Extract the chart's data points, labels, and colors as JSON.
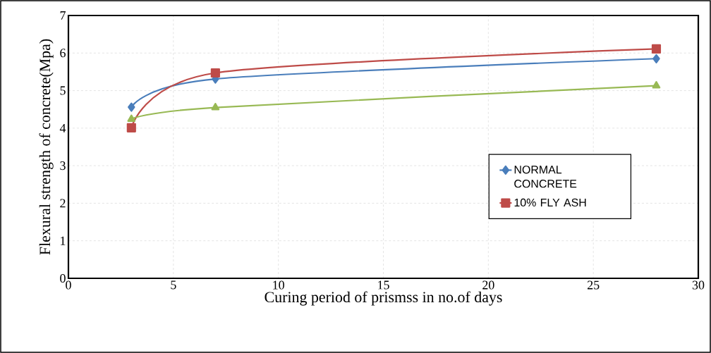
{
  "chart_data": {
    "type": "line",
    "xlabel": "Curing period of prismss in no.of days",
    "ylabel": "Flexural strength of concrete(Mpa)",
    "x": [
      3,
      7,
      28
    ],
    "series": [
      {
        "name": "NORMAL CONCRETE",
        "color": "#4a7ebb",
        "marker": "diamond",
        "values": [
          4.56,
          5.31,
          5.85
        ]
      },
      {
        "name": "10% FLY ASH",
        "color": "#be4b48",
        "marker": "square",
        "values": [
          4.01,
          5.47,
          6.11
        ]
      },
      {
        "color": "#98b954",
        "marker": "triangle",
        "values": [
          4.24,
          4.55,
          5.13
        ]
      }
    ],
    "xlim": [
      0,
      30
    ],
    "xticks": [
      0,
      5,
      10,
      15,
      20,
      25,
      30
    ],
    "ylim": [
      0,
      7
    ],
    "yticks": [
      0,
      1,
      2,
      3,
      4,
      5,
      6,
      7
    ],
    "grid": true,
    "legend": "bottom right",
    "line_style": "solid"
  }
}
